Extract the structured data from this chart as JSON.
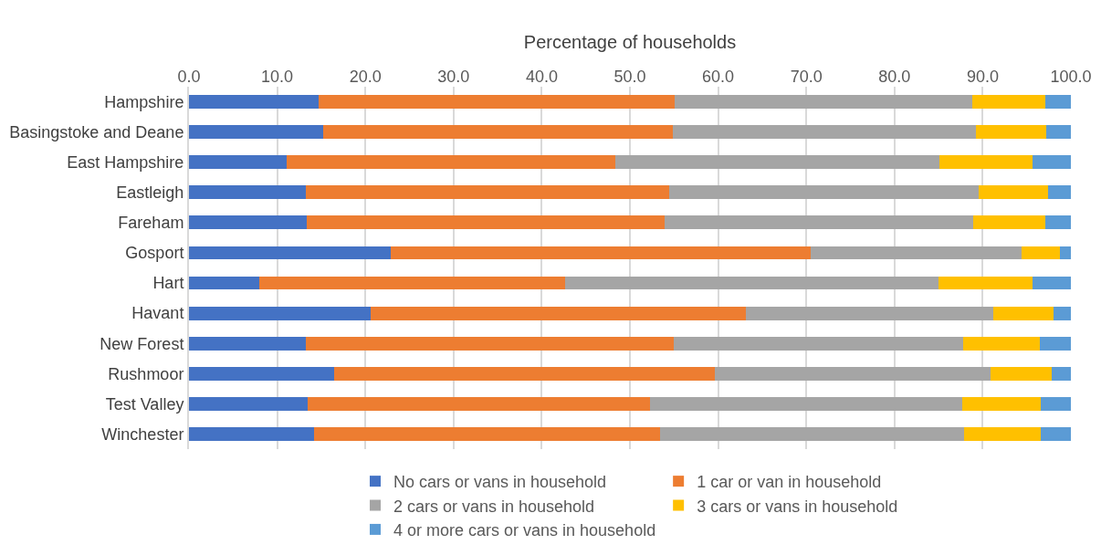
{
  "chart_data": {
    "type": "bar",
    "orientation": "horizontal",
    "stacked": true,
    "xlabel": "Percentage of households",
    "categories": [
      "Hampshire",
      "Basingstoke and Deane",
      "East Hampshire",
      "Eastleigh",
      "Fareham",
      "Gosport",
      "Hart",
      "Havant",
      "New Forest",
      "Rushmoor",
      "Test Valley",
      "Winchester"
    ],
    "series": [
      {
        "name": "No cars or vans in household",
        "color": "#4472c4",
        "values": [
          14.7,
          15.2,
          11.1,
          13.2,
          13.4,
          22.9,
          8.0,
          20.6,
          13.2,
          16.5,
          13.5,
          14.2
        ]
      },
      {
        "name": "1 car or van in household",
        "color": "#ed7d31",
        "values": [
          40.4,
          39.7,
          37.2,
          41.3,
          40.5,
          47.6,
          34.6,
          42.5,
          41.8,
          43.1,
          38.8,
          39.2
        ]
      },
      {
        "name": "2 cars or vans in household",
        "color": "#a5a5a5",
        "values": [
          33.7,
          34.3,
          36.8,
          35.0,
          35.0,
          23.9,
          42.4,
          28.1,
          32.8,
          31.3,
          35.4,
          34.5
        ]
      },
      {
        "name": "3 cars or vans in household",
        "color": "#ffc000",
        "values": [
          8.3,
          8.0,
          10.5,
          7.9,
          8.2,
          4.4,
          10.6,
          6.8,
          8.7,
          6.9,
          8.9,
          8.7
        ]
      },
      {
        "name": "4 or more cars or vans in household",
        "color": "#5b9bd5",
        "values": [
          2.9,
          2.8,
          4.4,
          2.6,
          2.9,
          1.2,
          4.4,
          2.0,
          3.5,
          2.2,
          3.4,
          3.4
        ]
      }
    ],
    "xlim": [
      0,
      100
    ],
    "xticks": [
      {
        "value": 0,
        "label": "0.0"
      },
      {
        "value": 10,
        "label": "10.0"
      },
      {
        "value": 20,
        "label": "20.0"
      },
      {
        "value": 30,
        "label": "30.0"
      },
      {
        "value": 40,
        "label": "40.0"
      },
      {
        "value": 50,
        "label": "50.0"
      },
      {
        "value": 60,
        "label": "60.0"
      },
      {
        "value": 70,
        "label": "70.0"
      },
      {
        "value": 80,
        "label": "80.0"
      },
      {
        "value": 90,
        "label": "90.0"
      },
      {
        "value": 100,
        "label": "100.0"
      }
    ],
    "grid": "x",
    "legend": "bottom"
  }
}
